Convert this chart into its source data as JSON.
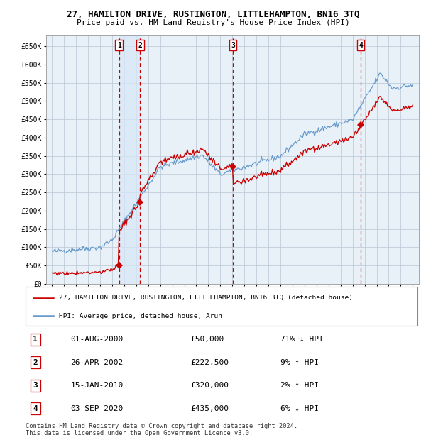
{
  "title": "27, HAMILTON DRIVE, RUSTINGTON, LITTLEHAMPTON, BN16 3TQ",
  "subtitle": "Price paid vs. HM Land Registry's House Price Index (HPI)",
  "legend_line1": "27, HAMILTON DRIVE, RUSTINGTON, LITTLEHAMPTON, BN16 3TQ (detached house)",
  "legend_line2": "HPI: Average price, detached house, Arun",
  "footer1": "Contains HM Land Registry data © Crown copyright and database right 2024.",
  "footer2": "This data is licensed under the Open Government Licence v3.0.",
  "ylim": [
    0,
    680000
  ],
  "yticks": [
    0,
    50000,
    100000,
    150000,
    200000,
    250000,
    300000,
    350000,
    400000,
    450000,
    500000,
    550000,
    600000,
    650000
  ],
  "ytick_labels": [
    "£0",
    "£50K",
    "£100K",
    "£150K",
    "£200K",
    "£250K",
    "£300K",
    "£350K",
    "£400K",
    "£450K",
    "£500K",
    "£550K",
    "£600K",
    "£650K"
  ],
  "xlim_start": 1994.5,
  "xlim_end": 2025.5,
  "xticks": [
    1995,
    1996,
    1997,
    1998,
    1999,
    2000,
    2001,
    2002,
    2003,
    2004,
    2005,
    2006,
    2007,
    2008,
    2009,
    2010,
    2011,
    2012,
    2013,
    2014,
    2015,
    2016,
    2017,
    2018,
    2019,
    2020,
    2021,
    2022,
    2023,
    2024,
    2025
  ],
  "sale_dates": [
    2000.583,
    2002.32,
    2010.04,
    2020.67
  ],
  "sale_prices": [
    50000,
    222500,
    320000,
    435000
  ],
  "sale_labels": [
    "1",
    "2",
    "3",
    "4"
  ],
  "table_rows": [
    [
      "1",
      "01-AUG-2000",
      "£50,000",
      "71% ↓ HPI"
    ],
    [
      "2",
      "26-APR-2002",
      "£222,500",
      "9% ↑ HPI"
    ],
    [
      "3",
      "15-JAN-2010",
      "£320,000",
      "2% ↑ HPI"
    ],
    [
      "4",
      "03-SEP-2020",
      "£435,000",
      "6% ↓ HPI"
    ]
  ],
  "red_line_color": "#cc0000",
  "blue_line_color": "#6699cc",
  "bg_color": "#e8f0f8",
  "grid_color": "#c0cdd8",
  "dashed_line_color": "#cc0000",
  "span_color": "#d8e8f8",
  "marker_color": "#cc0000",
  "fig_width": 6.0,
  "fig_height": 6.2,
  "dpi": 100
}
